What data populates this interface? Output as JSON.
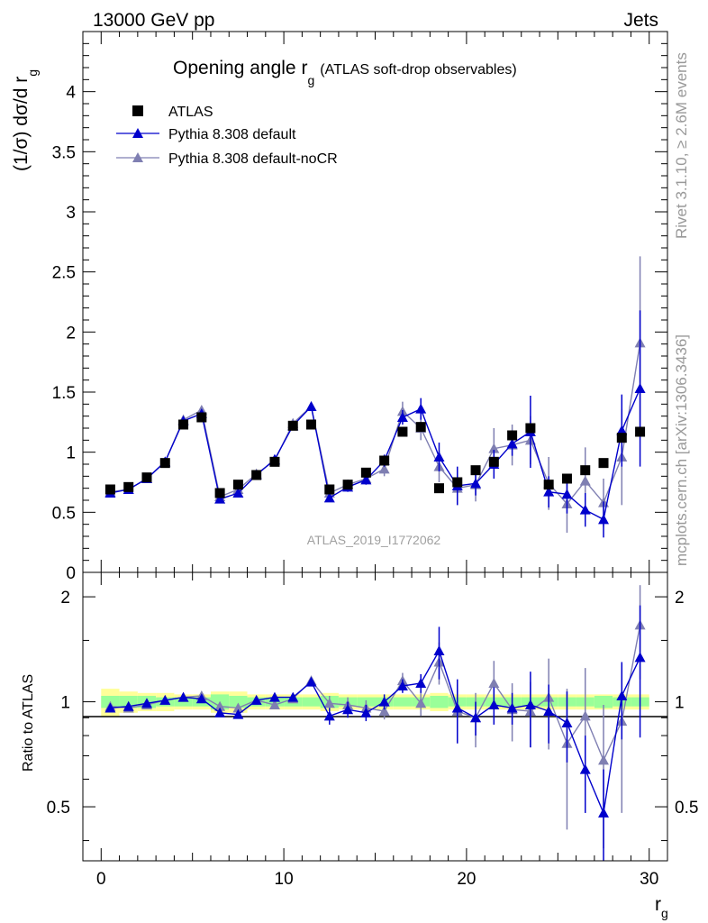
{
  "header": {
    "left": "13000 GeV pp",
    "right": "Jets"
  },
  "side": {
    "rivet": "Rivet 3.1.10, ≥ 2.6M events",
    "mcplots": "mcplots.cern.ch [arXiv:1306.3436]"
  },
  "colors": {
    "atlas": "#000000",
    "default": "#0000cc",
    "noCR": "#7f7fb2",
    "band_inner": "#99ff99",
    "band_outer": "#ffff99"
  },
  "chart_data": [
    {
      "type": "scatter",
      "title": "Opening angle r",
      "title_sub": "g",
      "title_note": "(ATLAS soft-drop observables)",
      "ylabel": "(1/σ) dσ/d r",
      "ylabel_sub": "g",
      "watermark": "ATLAS_2019_I1772062",
      "xlim": [
        -1,
        31
      ],
      "ylim": [
        0,
        4.5
      ],
      "yticks": [
        0,
        0.5,
        1,
        1.5,
        2,
        2.5,
        3,
        3.5,
        4
      ],
      "ytick_labels": [
        "0",
        "0.5",
        "1",
        "1.5",
        "2",
        "2.5",
        "3",
        "3.5",
        "4"
      ],
      "legend": [
        "ATLAS",
        "Pythia 8.308 default",
        "Pythia 8.308 default-noCR"
      ],
      "x": [
        0.5,
        1.5,
        2.5,
        3.5,
        4.5,
        5.5,
        6.5,
        7.5,
        8.5,
        9.5,
        10.5,
        11.5,
        12.5,
        13.5,
        14.5,
        15.5,
        16.5,
        17.5,
        18.5,
        19.5,
        20.5,
        21.5,
        22.5,
        23.5,
        24.5,
        25.5,
        26.5,
        27.5,
        28.5,
        29.5
      ],
      "series": [
        {
          "name": "ATLAS",
          "values": [
            0.69,
            0.71,
            0.79,
            0.91,
            1.23,
            1.29,
            0.66,
            0.73,
            0.81,
            0.92,
            1.22,
            1.23,
            0.69,
            0.73,
            0.83,
            0.93,
            1.17,
            1.21,
            0.7,
            0.75,
            0.85,
            0.92,
            1.14,
            1.2,
            0.73,
            0.78,
            0.85,
            0.91,
            1.12,
            1.17
          ]
        },
        {
          "name": "Pythia 8.308 default",
          "values": [
            0.66,
            0.69,
            0.78,
            0.92,
            1.26,
            1.32,
            0.61,
            0.66,
            0.81,
            0.94,
            1.22,
            1.38,
            0.62,
            0.71,
            0.77,
            0.93,
            1.29,
            1.36,
            0.96,
            0.72,
            0.74,
            0.9,
            1.07,
            1.17,
            0.67,
            0.65,
            0.52,
            0.44,
            1.18,
            1.53
          ],
          "err": [
            0.01,
            0.01,
            0.01,
            0.01,
            0.02,
            0.02,
            0.02,
            0.02,
            0.02,
            0.03,
            0.03,
            0.03,
            0.03,
            0.04,
            0.04,
            0.05,
            0.06,
            0.09,
            0.12,
            0.16,
            0.1,
            0.12,
            0.1,
            0.3,
            0.13,
            0.16,
            0.14,
            0.15,
            0.3,
            0.65
          ]
        },
        {
          "name": "Pythia 8.308 default-noCR",
          "values": [
            0.67,
            0.69,
            0.78,
            0.92,
            1.27,
            1.35,
            0.63,
            0.69,
            0.82,
            0.93,
            1.24,
            1.38,
            0.66,
            0.73,
            0.78,
            0.86,
            1.34,
            1.2,
            0.88,
            0.7,
            0.73,
            1.03,
            1.06,
            1.1,
            0.74,
            0.57,
            0.76,
            0.58,
            0.96,
            1.91
          ],
          "err": [
            0.01,
            0.01,
            0.01,
            0.01,
            0.02,
            0.02,
            0.02,
            0.02,
            0.02,
            0.03,
            0.03,
            0.03,
            0.04,
            0.04,
            0.05,
            0.06,
            0.08,
            0.1,
            0.13,
            0.14,
            0.14,
            0.17,
            0.17,
            0.2,
            0.22,
            0.24,
            0.28,
            0.2,
            0.4,
            0.72
          ]
        }
      ]
    },
    {
      "type": "scatter",
      "ylabel": "Ratio to ATLAS",
      "xlabel": "r",
      "xlabel_sub": "g",
      "xlim": [
        -1,
        31
      ],
      "ylim": [
        0.35,
        2.35
      ],
      "log_y": true,
      "xticks": [
        0,
        10,
        20,
        30
      ],
      "xtick_labels": [
        "0",
        "10",
        "20",
        "30"
      ],
      "yticks": [
        0.5,
        1,
        2
      ],
      "ytick_labels": [
        "0.5",
        "1",
        "2"
      ],
      "x": [
        0.5,
        1.5,
        2.5,
        3.5,
        4.5,
        5.5,
        6.5,
        7.5,
        8.5,
        9.5,
        10.5,
        11.5,
        12.5,
        13.5,
        14.5,
        15.5,
        16.5,
        17.5,
        18.5,
        19.5,
        20.5,
        21.5,
        22.5,
        23.5,
        24.5,
        25.5,
        26.5,
        27.5,
        28.5,
        29.5
      ],
      "band_inner": [
        0.04,
        0.04,
        0.04,
        0.03,
        0.03,
        0.03,
        0.05,
        0.04,
        0.03,
        0.03,
        0.03,
        0.03,
        0.04,
        0.03,
        0.03,
        0.03,
        0.03,
        0.03,
        0.04,
        0.03,
        0.03,
        0.03,
        0.03,
        0.03,
        0.03,
        0.03,
        0.03,
        0.04,
        0.03,
        0.03
      ],
      "band_outer": [
        0.09,
        0.07,
        0.06,
        0.06,
        0.05,
        0.05,
        0.07,
        0.07,
        0.05,
        0.05,
        0.05,
        0.05,
        0.06,
        0.05,
        0.05,
        0.05,
        0.05,
        0.05,
        0.06,
        0.05,
        0.05,
        0.05,
        0.05,
        0.05,
        0.05,
        0.05,
        0.05,
        0.05,
        0.05,
        0.05
      ],
      "series": [
        {
          "name": "Pythia 8.308 default",
          "values": [
            0.96,
            0.97,
            0.99,
            1.01,
            1.03,
            1.02,
            0.93,
            0.92,
            1.01,
            1.03,
            1.03,
            1.14,
            0.91,
            0.95,
            0.93,
            1.0,
            1.11,
            1.13,
            1.4,
            0.96,
            0.9,
            0.98,
            0.96,
            0.98,
            0.94,
            0.87,
            0.64,
            0.48,
            1.04,
            1.34
          ],
          "err": [
            0.01,
            0.01,
            0.01,
            0.01,
            0.01,
            0.01,
            0.02,
            0.02,
            0.02,
            0.02,
            0.02,
            0.02,
            0.05,
            0.05,
            0.05,
            0.05,
            0.05,
            0.07,
            0.24,
            0.2,
            0.1,
            0.12,
            0.1,
            0.24,
            0.18,
            0.2,
            0.16,
            0.16,
            0.26,
            0.55
          ]
        },
        {
          "name": "Pythia 8.308 default-noCR",
          "values": [
            0.97,
            0.96,
            0.98,
            1.01,
            1.03,
            1.04,
            0.97,
            0.96,
            1.01,
            0.98,
            1.02,
            1.15,
            0.99,
            0.98,
            0.96,
            0.94,
            1.15,
            0.99,
            1.3,
            0.94,
            0.9,
            1.13,
            0.95,
            0.94,
            1.03,
            0.76,
            0.91,
            0.68,
            0.88,
            1.66
          ],
          "err": [
            0.01,
            0.01,
            0.01,
            0.01,
            0.01,
            0.01,
            0.02,
            0.02,
            0.02,
            0.02,
            0.02,
            0.02,
            0.05,
            0.05,
            0.05,
            0.05,
            0.06,
            0.08,
            0.18,
            0.18,
            0.16,
            0.18,
            0.18,
            0.2,
            0.3,
            0.33,
            0.34,
            0.3,
            0.4,
            0.5
          ]
        }
      ]
    }
  ]
}
